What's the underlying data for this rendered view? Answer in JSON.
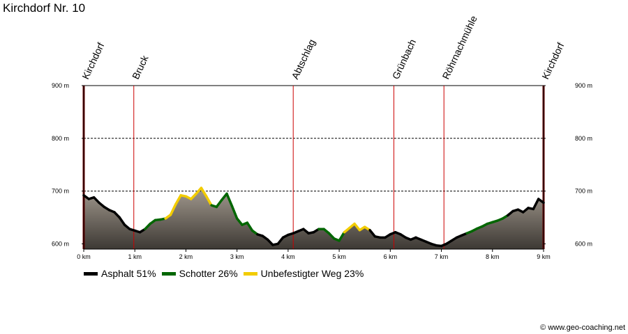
{
  "chart_data": {
    "type": "area",
    "title": "Kirchdorf Nr. 10",
    "x_unit": "km",
    "y_unit": "m",
    "xlim": [
      0,
      9
    ],
    "ylim": [
      590,
      900
    ],
    "x_ticks": [
      {
        "value": 0,
        "label": "0 km"
      },
      {
        "value": 1,
        "label": "1 km"
      },
      {
        "value": 2,
        "label": "2 km"
      },
      {
        "value": 3,
        "label": "3 km"
      },
      {
        "value": 4,
        "label": "4 km"
      },
      {
        "value": 5,
        "label": "5 km"
      },
      {
        "value": 6,
        "label": "6 km"
      },
      {
        "value": 7,
        "label": "7 km"
      },
      {
        "value": 8,
        "label": "8 km"
      },
      {
        "value": 9,
        "label": "9 km"
      }
    ],
    "y_ticks": [
      {
        "value": 600,
        "label": "600 m"
      },
      {
        "value": 700,
        "label": "700 m"
      },
      {
        "value": 800,
        "label": "800 m"
      },
      {
        "value": 900,
        "label": "900 m"
      }
    ],
    "grid": "dashed horizontal at 700 m and 800 m",
    "waypoints": [
      {
        "km": 0.0,
        "name": "Kirchdorf"
      },
      {
        "km": 0.98,
        "name": "Bruck"
      },
      {
        "km": 4.1,
        "name": "Abtschlag"
      },
      {
        "km": 6.07,
        "name": "Grünbach"
      },
      {
        "km": 7.05,
        "name": "Röhrnachmühle"
      },
      {
        "km": 9.0,
        "name": "Kirchdorf"
      }
    ],
    "surface_types": [
      {
        "key": "asphalt",
        "label": "Asphalt 51%",
        "color": "#000000"
      },
      {
        "key": "gravel",
        "label": "Schotter 26%",
        "color": "#006600"
      },
      {
        "key": "unpaved",
        "label": "Unbefestigter Weg 23%",
        "color": "#f2cc00"
      }
    ],
    "profile": [
      [
        0.0,
        692,
        "asphalt"
      ],
      [
        0.1,
        685,
        "asphalt"
      ],
      [
        0.2,
        688,
        "asphalt"
      ],
      [
        0.3,
        678,
        "asphalt"
      ],
      [
        0.4,
        670,
        "asphalt"
      ],
      [
        0.5,
        664,
        "asphalt"
      ],
      [
        0.6,
        660,
        "asphalt"
      ],
      [
        0.7,
        650,
        "asphalt"
      ],
      [
        0.8,
        636,
        "asphalt"
      ],
      [
        0.9,
        628,
        "asphalt"
      ],
      [
        1.0,
        625,
        "asphalt"
      ],
      [
        1.1,
        622,
        "asphalt"
      ],
      [
        1.2,
        628,
        "gravel"
      ],
      [
        1.3,
        638,
        "gravel"
      ],
      [
        1.4,
        645,
        "gravel"
      ],
      [
        1.5,
        646,
        "gravel"
      ],
      [
        1.6,
        648,
        "unpaved"
      ],
      [
        1.7,
        655,
        "unpaved"
      ],
      [
        1.8,
        675,
        "unpaved"
      ],
      [
        1.9,
        692,
        "unpaved"
      ],
      [
        2.0,
        690,
        "unpaved"
      ],
      [
        2.1,
        685,
        "unpaved"
      ],
      [
        2.2,
        695,
        "unpaved"
      ],
      [
        2.3,
        706,
        "unpaved"
      ],
      [
        2.4,
        690,
        "unpaved"
      ],
      [
        2.5,
        673,
        "gravel"
      ],
      [
        2.6,
        670,
        "gravel"
      ],
      [
        2.7,
        683,
        "gravel"
      ],
      [
        2.8,
        695,
        "gravel"
      ],
      [
        2.9,
        672,
        "gravel"
      ],
      [
        3.0,
        648,
        "gravel"
      ],
      [
        3.1,
        636,
        "gravel"
      ],
      [
        3.2,
        640,
        "gravel"
      ],
      [
        3.3,
        625,
        "gravel"
      ],
      [
        3.4,
        618,
        "asphalt"
      ],
      [
        3.5,
        615,
        "asphalt"
      ],
      [
        3.6,
        608,
        "asphalt"
      ],
      [
        3.7,
        598,
        "asphalt"
      ],
      [
        3.8,
        600,
        "asphalt"
      ],
      [
        3.9,
        612,
        "asphalt"
      ],
      [
        4.0,
        617,
        "asphalt"
      ],
      [
        4.1,
        620,
        "asphalt"
      ],
      [
        4.2,
        624,
        "asphalt"
      ],
      [
        4.3,
        628,
        "asphalt"
      ],
      [
        4.4,
        620,
        "asphalt"
      ],
      [
        4.5,
        622,
        "asphalt"
      ],
      [
        4.6,
        628,
        "gravel"
      ],
      [
        4.7,
        628,
        "gravel"
      ],
      [
        4.8,
        620,
        "gravel"
      ],
      [
        4.9,
        610,
        "gravel"
      ],
      [
        5.0,
        606,
        "gravel"
      ],
      [
        5.1,
        622,
        "unpaved"
      ],
      [
        5.2,
        630,
        "unpaved"
      ],
      [
        5.3,
        638,
        "unpaved"
      ],
      [
        5.4,
        626,
        "unpaved"
      ],
      [
        5.5,
        632,
        "unpaved"
      ],
      [
        5.6,
        626,
        "asphalt"
      ],
      [
        5.7,
        614,
        "asphalt"
      ],
      [
        5.8,
        612,
        "asphalt"
      ],
      [
        5.9,
        612,
        "asphalt"
      ],
      [
        6.0,
        618,
        "asphalt"
      ],
      [
        6.1,
        622,
        "asphalt"
      ],
      [
        6.2,
        618,
        "asphalt"
      ],
      [
        6.3,
        612,
        "asphalt"
      ],
      [
        6.4,
        608,
        "asphalt"
      ],
      [
        6.5,
        612,
        "asphalt"
      ],
      [
        6.6,
        608,
        "asphalt"
      ],
      [
        6.7,
        604,
        "asphalt"
      ],
      [
        6.8,
        600,
        "asphalt"
      ],
      [
        6.9,
        597,
        "asphalt"
      ],
      [
        7.0,
        596,
        "asphalt"
      ],
      [
        7.1,
        600,
        "asphalt"
      ],
      [
        7.2,
        606,
        "asphalt"
      ],
      [
        7.3,
        612,
        "asphalt"
      ],
      [
        7.4,
        616,
        "asphalt"
      ],
      [
        7.5,
        620,
        "gravel"
      ],
      [
        7.6,
        624,
        "gravel"
      ],
      [
        7.7,
        629,
        "gravel"
      ],
      [
        7.8,
        633,
        "gravel"
      ],
      [
        7.9,
        638,
        "gravel"
      ],
      [
        8.0,
        641,
        "gravel"
      ],
      [
        8.1,
        644,
        "gravel"
      ],
      [
        8.2,
        648,
        "gravel"
      ],
      [
        8.3,
        654,
        "asphalt"
      ],
      [
        8.4,
        662,
        "asphalt"
      ],
      [
        8.5,
        665,
        "asphalt"
      ],
      [
        8.6,
        660,
        "asphalt"
      ],
      [
        8.7,
        668,
        "asphalt"
      ],
      [
        8.8,
        666,
        "asphalt"
      ],
      [
        8.9,
        685,
        "asphalt"
      ],
      [
        9.0,
        678,
        "asphalt"
      ]
    ]
  },
  "copyright": "© www.geo-coaching.net"
}
